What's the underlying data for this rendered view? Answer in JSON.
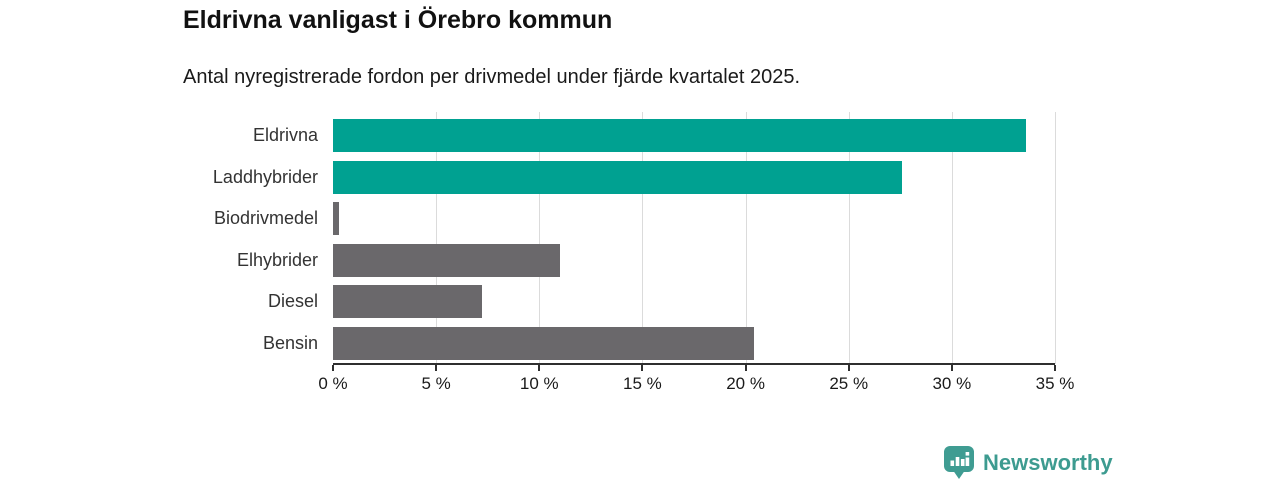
{
  "header": {
    "title": "Eldrivna vanligast i Örebro kommun",
    "subtitle": "Antal nyregistrerade fordon per drivmedel under fjärde kvartalet 2025."
  },
  "chart_data": {
    "type": "bar",
    "orientation": "horizontal",
    "title": "Eldrivna vanligast i Örebro kommun",
    "subtitle": "Antal nyregistrerade fordon per drivmedel under fjärde kvartalet 2025.",
    "categories": [
      "Eldrivna",
      "Laddhybrider",
      "Biodrivmedel",
      "Elhybrider",
      "Diesel",
      "Bensin"
    ],
    "values": [
      33.6,
      27.6,
      0.3,
      11,
      7.2,
      20.4
    ],
    "unit": "%",
    "bar_colors": [
      "#00a191",
      "#00a191",
      "#6a686b",
      "#6a686b",
      "#6a686b",
      "#6a686b"
    ],
    "highlight_color": "#00a191",
    "default_color": "#6a686b",
    "xlim": [
      0,
      35
    ],
    "x_ticks": [
      0,
      5,
      10,
      15,
      20,
      25,
      30,
      35
    ],
    "x_tick_labels": [
      "0 %",
      "5 %",
      "10 %",
      "15 %",
      "20 %",
      "25 %",
      "30 %",
      "35 %"
    ],
    "grid": "vertical",
    "gridline_color": "#dbdbdb",
    "legend": "none"
  },
  "footer": {
    "brand": "Newsworthy",
    "brand_color": "#3d9b90",
    "logo_icon": "newsworthy-pin-barchart-icon"
  }
}
